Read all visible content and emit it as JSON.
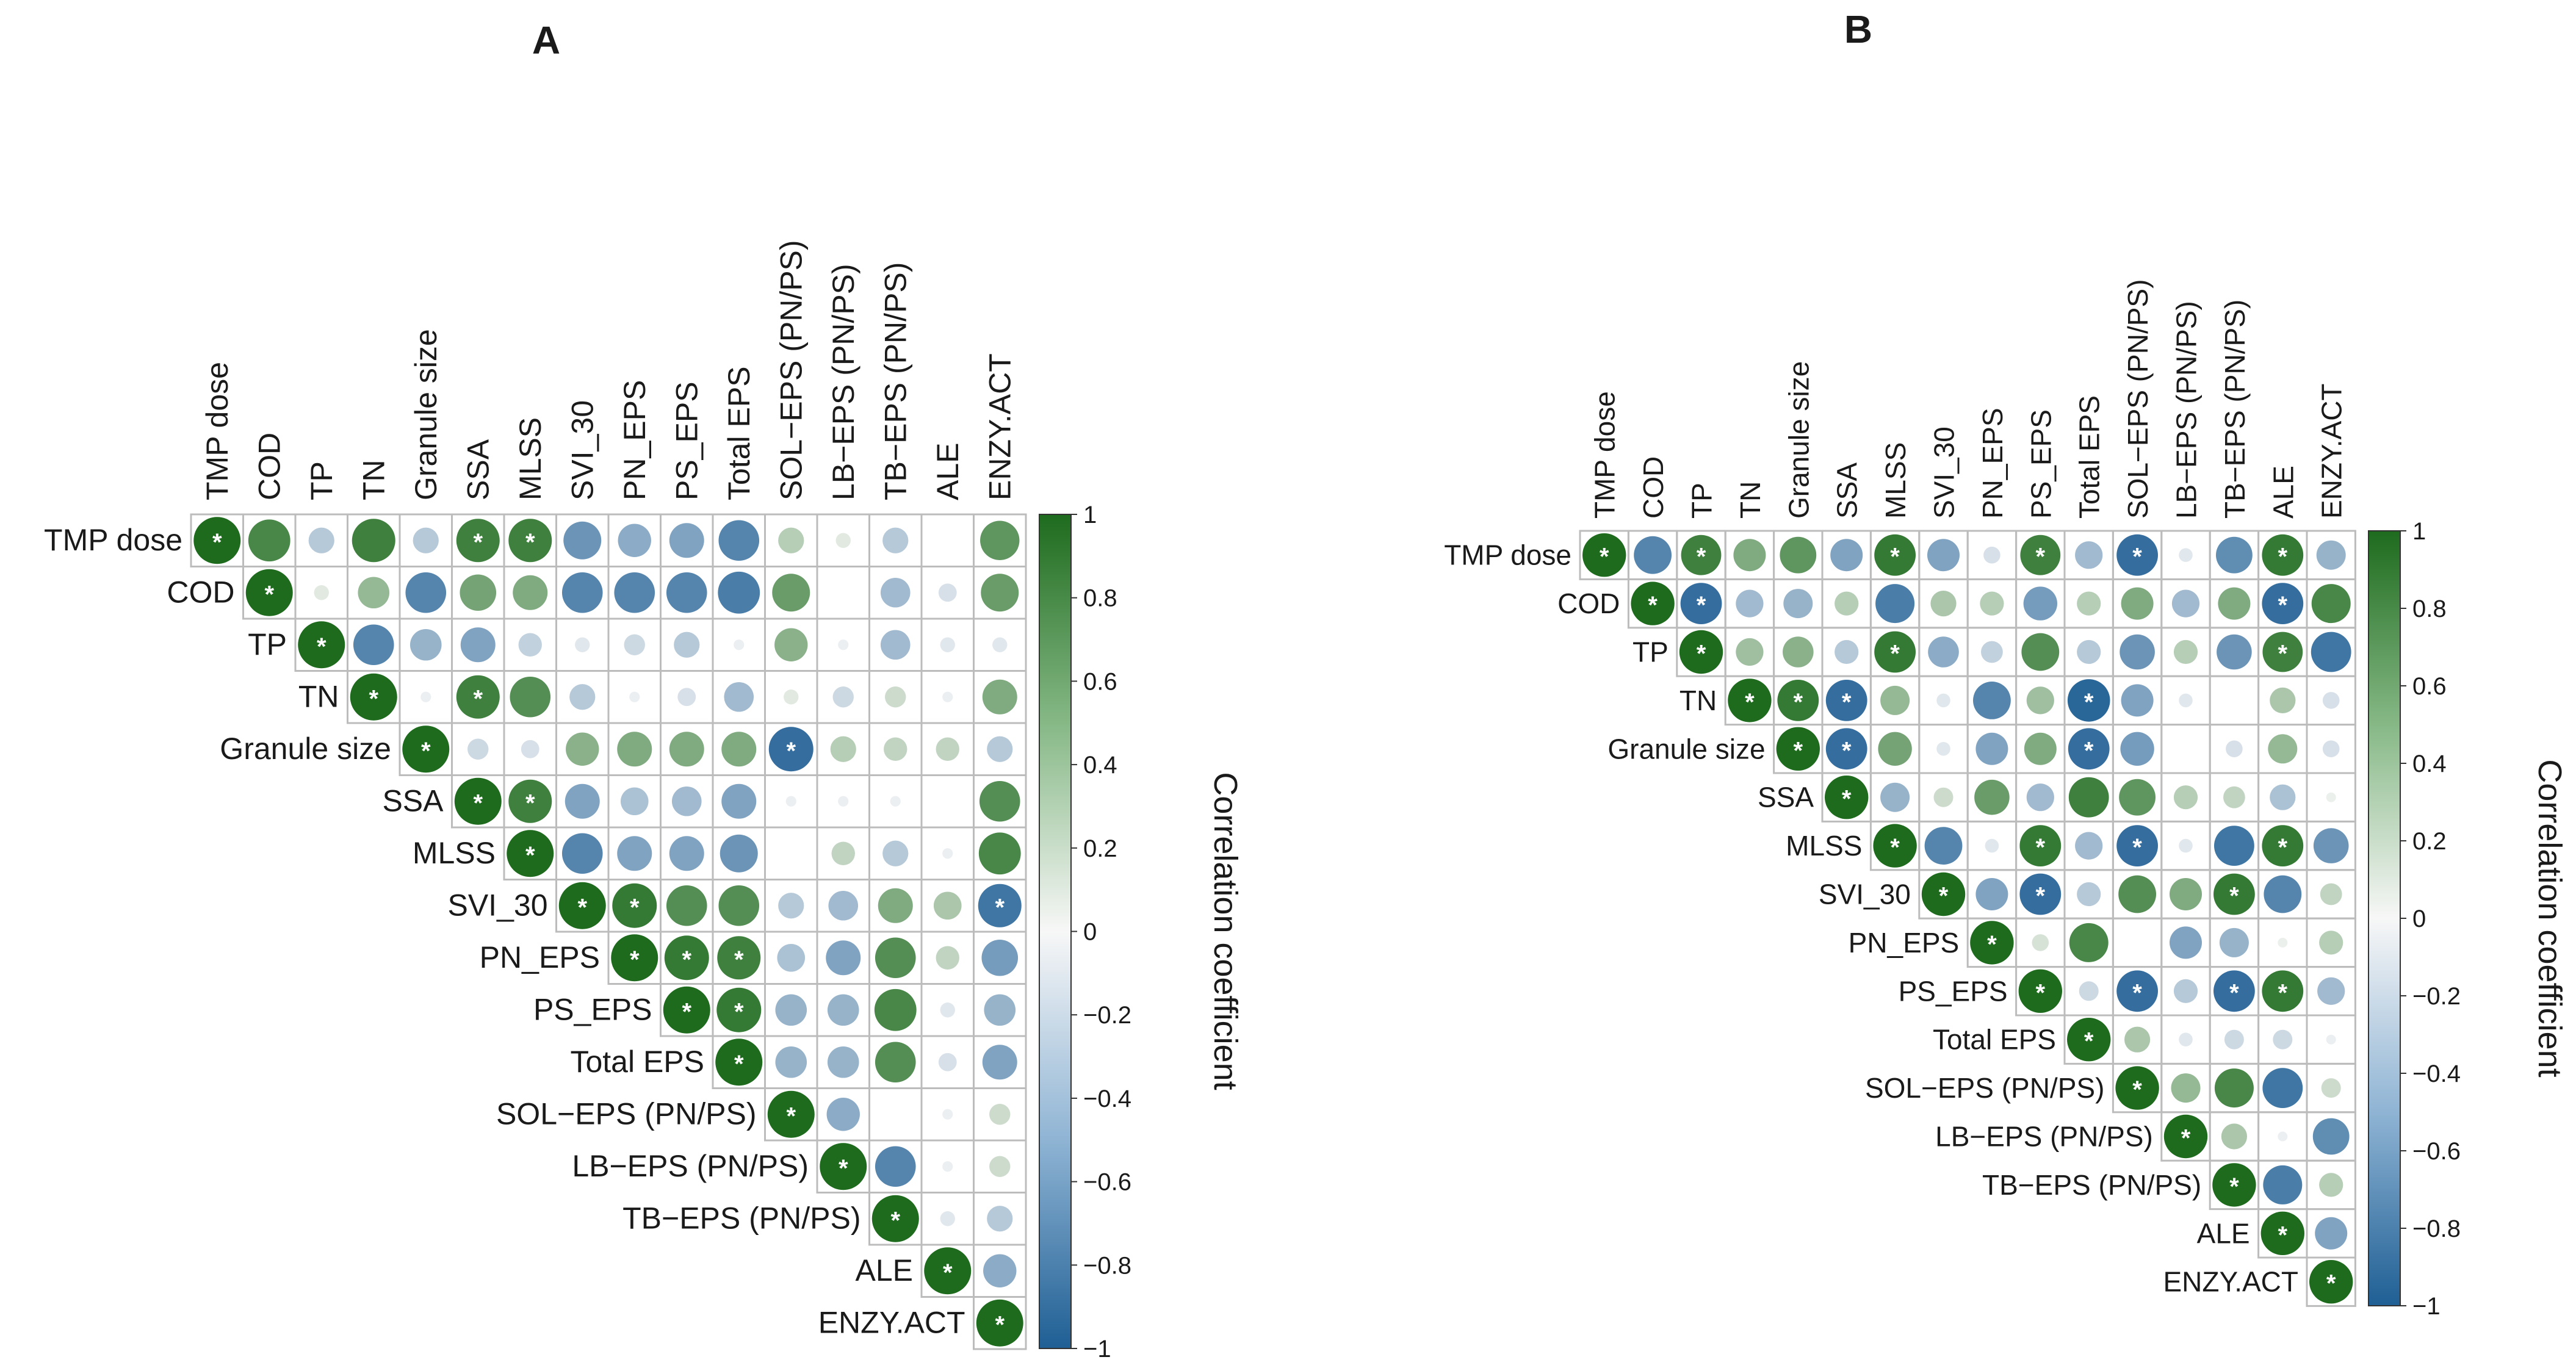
{
  "colors": {
    "positive": "#1e6b1e",
    "neutral": "#f7f7f7",
    "negative": "#1f5f94",
    "grid": "#bcbcbc",
    "star": "#ffffff"
  },
  "chart_data": [
    {
      "type": "heatmap",
      "title": "A",
      "labels": [
        "TMP dose",
        "COD",
        "TP",
        "TN",
        "Granule size",
        "SSA",
        "MLSS",
        "SVI_30",
        "PN_EPS",
        "PS_EPS",
        "Total EPS",
        "SOL−EPS (PN/PS)",
        "LB−EPS  (PN/PS)",
        "TB−EPS  (PN/PS)",
        "ALE",
        "ENZY.ACT"
      ],
      "matrix": [
        [
          1,
          0.8,
          -0.3,
          0.85,
          -0.3,
          0.85,
          0.85,
          -0.65,
          -0.5,
          -0.55,
          -0.75,
          0.3,
          0.1,
          -0.3,
          0,
          0.7
        ],
        [
          null,
          1,
          0.1,
          0.45,
          -0.75,
          0.6,
          0.55,
          -0.75,
          -0.75,
          -0.75,
          -0.8,
          0.65,
          0,
          -0.4,
          -0.15,
          0.65
        ],
        [
          null,
          null,
          1,
          -0.75,
          -0.45,
          -0.55,
          -0.25,
          -0.1,
          -0.2,
          -0.3,
          -0.05,
          0.5,
          -0.05,
          -0.4,
          -0.1,
          -0.1
        ],
        [
          null,
          null,
          null,
          1,
          -0.05,
          0.85,
          0.75,
          -0.3,
          -0.05,
          -0.15,
          -0.4,
          0.1,
          -0.2,
          0.2,
          -0.05,
          0.55
        ],
        [
          null,
          null,
          null,
          null,
          1,
          -0.2,
          -0.15,
          0.5,
          0.55,
          0.55,
          0.55,
          -0.9,
          0.3,
          0.25,
          0.25,
          -0.3
        ],
        [
          null,
          null,
          null,
          null,
          null,
          1,
          0.85,
          -0.55,
          -0.35,
          -0.4,
          -0.55,
          -0.05,
          -0.05,
          -0.05,
          0,
          0.75
        ],
        [
          null,
          null,
          null,
          null,
          null,
          null,
          1,
          -0.75,
          -0.55,
          -0.55,
          -0.65,
          0,
          0.25,
          -0.3,
          -0.05,
          0.8
        ],
        [
          null,
          null,
          null,
          null,
          null,
          null,
          null,
          1,
          0.9,
          0.75,
          0.75,
          -0.3,
          -0.4,
          0.55,
          0.35,
          -0.85
        ],
        [
          null,
          null,
          null,
          null,
          null,
          null,
          null,
          null,
          1,
          0.9,
          0.85,
          -0.35,
          -0.55,
          0.75,
          0.25,
          -0.6
        ],
        [
          null,
          null,
          null,
          null,
          null,
          null,
          null,
          null,
          null,
          1,
          0.9,
          -0.45,
          -0.45,
          0.8,
          -0.1,
          -0.45
        ],
        [
          null,
          null,
          null,
          null,
          null,
          null,
          null,
          null,
          null,
          null,
          1,
          -0.45,
          -0.45,
          0.75,
          -0.15,
          -0.55
        ],
        [
          null,
          null,
          null,
          null,
          null,
          null,
          null,
          null,
          null,
          null,
          null,
          1,
          -0.5,
          0,
          -0.05,
          0.2
        ],
        [
          null,
          null,
          null,
          null,
          null,
          null,
          null,
          null,
          null,
          null,
          null,
          null,
          1,
          -0.75,
          -0.05,
          0.2
        ],
        [
          null,
          null,
          null,
          null,
          null,
          null,
          null,
          null,
          null,
          null,
          null,
          null,
          null,
          1,
          -0.1,
          -0.3
        ],
        [
          null,
          null,
          null,
          null,
          null,
          null,
          null,
          null,
          null,
          null,
          null,
          null,
          null,
          null,
          1,
          -0.5
        ],
        [
          null,
          null,
          null,
          null,
          null,
          null,
          null,
          null,
          null,
          null,
          null,
          null,
          null,
          null,
          null,
          1
        ]
      ],
      "significant": [
        [
          0,
          0
        ],
        [
          0,
          5
        ],
        [
          0,
          6
        ],
        [
          1,
          1
        ],
        [
          2,
          2
        ],
        [
          3,
          3
        ],
        [
          3,
          5
        ],
        [
          4,
          4
        ],
        [
          4,
          11
        ],
        [
          5,
          5
        ],
        [
          5,
          6
        ],
        [
          6,
          6
        ],
        [
          7,
          7
        ],
        [
          7,
          8
        ],
        [
          7,
          15
        ],
        [
          8,
          8
        ],
        [
          8,
          9
        ],
        [
          8,
          10
        ],
        [
          9,
          9
        ],
        [
          9,
          10
        ],
        [
          10,
          10
        ],
        [
          11,
          11
        ],
        [
          12,
          12
        ],
        [
          13,
          13
        ],
        [
          14,
          14
        ],
        [
          15,
          15
        ]
      ],
      "legend": {
        "title": "Correlation coefficient",
        "ticks": [
          "1",
          "0.8",
          "0.6",
          "0.4",
          "0.2",
          "0",
          "−0.2",
          "−0.4",
          "−0.6",
          "−0.8",
          "−1"
        ],
        "range": [
          -1,
          1
        ]
      },
      "significance_mark": "*"
    },
    {
      "type": "heatmap",
      "title": "B",
      "labels": [
        "TMP dose",
        "COD",
        "TP",
        "TN",
        "Granule size",
        "SSA",
        "MLSS",
        "SVI_30",
        "PN_EPS",
        "PS_EPS",
        "Total EPS",
        "SOL−EPS (PN/PS)",
        "LB−EPS  (PN/PS)",
        "TB−EPS  (PN/PS)",
        "ALE",
        "ENZY.ACT"
      ],
      "matrix": [
        [
          1,
          -0.75,
          0.85,
          0.55,
          0.7,
          -0.55,
          0.9,
          -0.55,
          -0.15,
          0.85,
          -0.4,
          -0.9,
          -0.1,
          -0.7,
          0.9,
          -0.45
        ],
        [
          null,
          1,
          -0.9,
          -0.4,
          -0.45,
          0.3,
          -0.8,
          0.35,
          0.3,
          -0.6,
          0.3,
          0.55,
          -0.4,
          0.55,
          -0.9,
          0.8
        ],
        [
          null,
          null,
          1,
          0.4,
          0.5,
          -0.3,
          0.9,
          -0.5,
          -0.25,
          0.75,
          -0.3,
          -0.65,
          0.3,
          -0.65,
          0.85,
          -0.85
        ],
        [
          null,
          null,
          null,
          1,
          0.9,
          -0.9,
          0.45,
          -0.1,
          -0.75,
          0.4,
          -0.95,
          -0.55,
          -0.1,
          0,
          0.35,
          -0.15
        ],
        [
          null,
          null,
          null,
          null,
          1,
          -0.9,
          0.6,
          -0.1,
          -0.55,
          0.55,
          -0.9,
          -0.6,
          0,
          -0.15,
          0.45,
          -0.15
        ],
        [
          null,
          null,
          null,
          null,
          null,
          1,
          -0.45,
          0.2,
          0.65,
          -0.4,
          0.85,
          0.7,
          0.3,
          0.25,
          -0.35,
          0.05
        ],
        [
          null,
          null,
          null,
          null,
          null,
          null,
          1,
          -0.75,
          -0.1,
          0.9,
          -0.4,
          -0.9,
          -0.1,
          -0.85,
          0.9,
          -0.65
        ],
        [
          null,
          null,
          null,
          null,
          null,
          null,
          null,
          1,
          -0.55,
          -0.9,
          -0.3,
          0.75,
          0.55,
          0.9,
          -0.75,
          0.25
        ],
        [
          null,
          null,
          null,
          null,
          null,
          null,
          null,
          null,
          1,
          0.15,
          0.8,
          0,
          -0.55,
          -0.45,
          0.05,
          0.3
        ],
        [
          null,
          null,
          null,
          null,
          null,
          null,
          null,
          null,
          null,
          1,
          -0.2,
          -0.9,
          -0.3,
          -0.9,
          0.9,
          -0.4
        ],
        [
          null,
          null,
          null,
          null,
          null,
          null,
          null,
          null,
          null,
          null,
          1,
          0.35,
          -0.1,
          -0.2,
          -0.2,
          -0.05
        ],
        [
          null,
          null,
          null,
          null,
          null,
          null,
          null,
          null,
          null,
          null,
          null,
          1,
          0.45,
          0.8,
          -0.85,
          0.2
        ],
        [
          null,
          null,
          null,
          null,
          null,
          null,
          null,
          null,
          null,
          null,
          null,
          null,
          1,
          0.35,
          -0.05,
          -0.7
        ],
        [
          null,
          null,
          null,
          null,
          null,
          null,
          null,
          null,
          null,
          null,
          null,
          null,
          null,
          1,
          -0.8,
          0.3
        ],
        [
          null,
          null,
          null,
          null,
          null,
          null,
          null,
          null,
          null,
          null,
          null,
          null,
          null,
          null,
          1,
          -0.55
        ],
        [
          null,
          null,
          null,
          null,
          null,
          null,
          null,
          null,
          null,
          null,
          null,
          null,
          null,
          null,
          null,
          1
        ]
      ],
      "significant": [
        [
          0,
          0
        ],
        [
          0,
          2
        ],
        [
          0,
          6
        ],
        [
          0,
          9
        ],
        [
          0,
          11
        ],
        [
          0,
          14
        ],
        [
          1,
          1
        ],
        [
          1,
          2
        ],
        [
          1,
          14
        ],
        [
          2,
          2
        ],
        [
          2,
          6
        ],
        [
          2,
          14
        ],
        [
          3,
          3
        ],
        [
          3,
          4
        ],
        [
          3,
          5
        ],
        [
          3,
          10
        ],
        [
          4,
          4
        ],
        [
          4,
          5
        ],
        [
          4,
          10
        ],
        [
          5,
          5
        ],
        [
          6,
          6
        ],
        [
          6,
          9
        ],
        [
          6,
          11
        ],
        [
          6,
          14
        ],
        [
          7,
          7
        ],
        [
          7,
          9
        ],
        [
          7,
          13
        ],
        [
          8,
          8
        ],
        [
          9,
          9
        ],
        [
          9,
          11
        ],
        [
          9,
          13
        ],
        [
          9,
          14
        ],
        [
          10,
          10
        ],
        [
          11,
          11
        ],
        [
          12,
          12
        ],
        [
          13,
          13
        ],
        [
          14,
          14
        ],
        [
          15,
          15
        ]
      ],
      "legend": {
        "title": "Correlation coefficient",
        "ticks": [
          "1",
          "0.8",
          "0.6",
          "0.4",
          "0.2",
          "0",
          "−0.2",
          "−0.4",
          "−0.6",
          "−0.8",
          "−1"
        ],
        "range": [
          -1,
          1
        ]
      },
      "significance_mark": "*"
    }
  ]
}
